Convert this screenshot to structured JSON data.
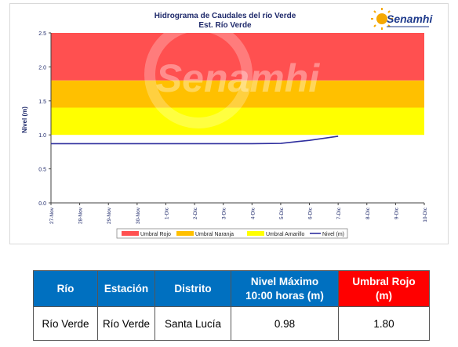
{
  "chart_data": {
    "type": "line",
    "title": "Hidrograma de Caudales del río Verde",
    "subtitle": "Est. Río Verde",
    "ylabel": "Nivel (m)",
    "xlabel": "",
    "ylim": [
      0,
      2.5
    ],
    "yticks": [
      "0.0",
      "0.5",
      "1.0",
      "1.5",
      "2.0",
      "2.5"
    ],
    "categories": [
      "27-Nov",
      "28-Nov",
      "29-Nov",
      "30-Nov",
      "1-Dic",
      "2-Dic",
      "3-Dic",
      "4-Dic",
      "5-Dic",
      "6-Dic",
      "7-Dic",
      "8-Dic",
      "9-Dic",
      "10-Dic"
    ],
    "bands": [
      {
        "name": "Umbral Rojo",
        "from": 1.8,
        "to": 2.5,
        "color": "#ff5050"
      },
      {
        "name": "Umbral Naranja",
        "from": 1.4,
        "to": 1.8,
        "color": "#ffc000"
      },
      {
        "name": "Umbral Amarillo",
        "from": 1.0,
        "to": 1.4,
        "color": "#ffff00"
      }
    ],
    "series": [
      {
        "name": "Nivel (m)",
        "color": "#2e2e9e",
        "x": [
          0,
          1,
          2,
          3,
          4,
          5,
          6,
          7,
          8,
          9,
          10
        ],
        "values": [
          0.87,
          0.87,
          0.87,
          0.87,
          0.87,
          0.87,
          0.87,
          0.87,
          0.875,
          0.92,
          0.98
        ]
      }
    ],
    "legend_position": "bottom",
    "grid": false
  },
  "logo": {
    "text": "Senamhi",
    "icon": "sun-icon"
  },
  "watermark": "Senamhi",
  "table": {
    "headers": [
      "Río",
      "Estación",
      "Distrito",
      "Nivel Máximo\n10:00 horas (m)",
      "Umbral Rojo\n(m)"
    ],
    "rows": [
      [
        "Río Verde",
        "Río Verde",
        "Santa Lucía",
        "0.98",
        "1.80"
      ]
    ]
  },
  "colors": {
    "header_blue": "#0070c0",
    "header_red": "#ff0000"
  }
}
